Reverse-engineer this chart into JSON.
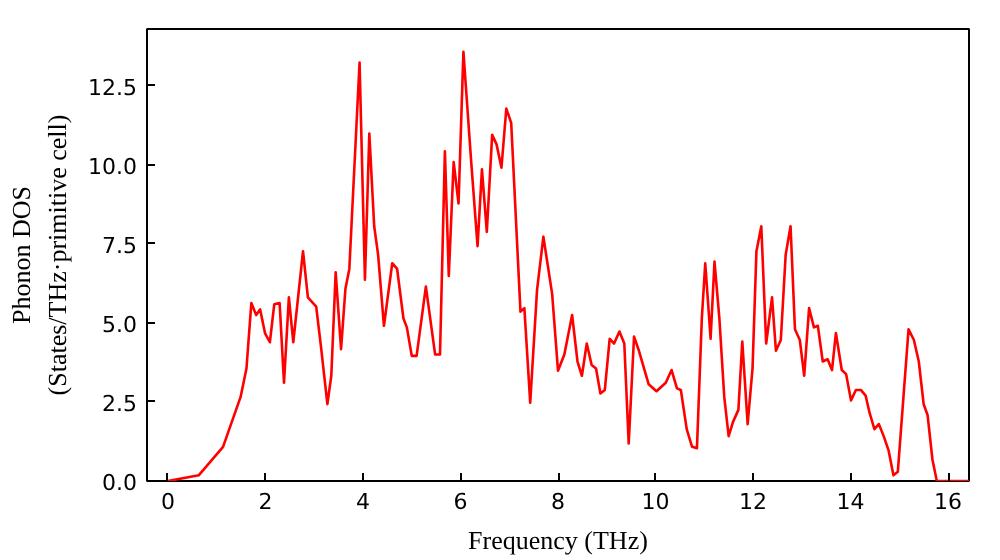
{
  "chart_data": {
    "type": "line",
    "xlabel": "Frequency (THz)",
    "ylabel": "Phonon DOS\n(States/THz·primitive cell)",
    "xlim": [
      -0.43,
      16.43
    ],
    "ylim": [
      0,
      14.3
    ],
    "xticks": [
      0,
      2,
      4,
      6,
      8,
      10,
      12,
      14,
      16
    ],
    "yticks": [
      {
        "value": 0,
        "label": "0.0"
      },
      2.5,
      {
        "value": 5,
        "label": "5.0"
      },
      {
        "value": 7.5,
        "label": "7.5"
      },
      {
        "value": 10,
        "label": "10.0"
      },
      12.5
    ],
    "grid": false,
    "marker": "none",
    "line_style": "solid",
    "series": [
      {
        "color": "#ff0000",
        "x": [
          0,
          0.63,
          1.13,
          1.49,
          1.61,
          1.71,
          1.81,
          1.89,
          1.99,
          2.09,
          2.18,
          2.29,
          2.38,
          2.48,
          2.57,
          2.77,
          2.87,
          3.04,
          3.14,
          3.27,
          3.35,
          3.44,
          3.55,
          3.64,
          3.72,
          3.93,
          4.04,
          4.13,
          4.23,
          4.31,
          4.43,
          4.6,
          4.7,
          4.83,
          4.9,
          5.0,
          5.1,
          5.29,
          5.48,
          5.58,
          5.68,
          5.76,
          5.86,
          5.96,
          6.06,
          6.22,
          6.35,
          6.44,
          6.54,
          6.65,
          6.74,
          6.84,
          6.94,
          7.04,
          7.23,
          7.31,
          7.43,
          7.57,
          7.7,
          7.88,
          8.0,
          8.13,
          8.29,
          8.4,
          8.49,
          8.59,
          8.69,
          8.78,
          8.87,
          8.96,
          9.06,
          9.15,
          9.26,
          9.36,
          9.45,
          9.56,
          9.66,
          9.86,
          10.02,
          10.21,
          10.33,
          10.44,
          10.52,
          10.64,
          10.75,
          10.85,
          10.95,
          11.02,
          11.13,
          11.21,
          11.31,
          11.41,
          11.5,
          11.59,
          11.7,
          11.78,
          11.89,
          11.99,
          12.07,
          12.17,
          12.27,
          12.39,
          12.47,
          12.57,
          12.67,
          12.77,
          12.86,
          12.96,
          13.05,
          13.15,
          13.25,
          13.33,
          13.43,
          13.53,
          13.62,
          13.7,
          13.82,
          13.91,
          14.01,
          14.11,
          14.21,
          14.31,
          14.39,
          14.49,
          14.58,
          14.68,
          14.78,
          14.88,
          14.97,
          15.19,
          15.3,
          15.4,
          15.5,
          15.58,
          15.68,
          15.77,
          16.43
        ],
        "values": [
          0,
          0.18,
          1.08,
          2.66,
          3.56,
          5.63,
          5.25,
          5.43,
          4.68,
          4.39,
          5.59,
          5.63,
          3.11,
          5.81,
          4.39,
          7.27,
          5.81,
          5.52,
          4.23,
          2.43,
          3.33,
          6.6,
          4.17,
          6.08,
          6.71,
          13.24,
          6.37,
          10.99,
          8.06,
          7.16,
          4.91,
          6.89,
          6.71,
          5.14,
          4.86,
          3.96,
          3.96,
          6.15,
          4.0,
          4.0,
          10.43,
          6.49,
          10.09,
          8.78,
          13.58,
          10.09,
          7.43,
          9.86,
          7.88,
          10.95,
          10.65,
          9.91,
          11.78,
          11.33,
          5.36,
          5.47,
          2.48,
          6.04,
          7.73,
          5.92,
          3.49,
          4.0,
          5.25,
          3.78,
          3.33,
          4.35,
          3.67,
          3.56,
          2.77,
          2.88,
          4.5,
          4.35,
          4.73,
          4.35,
          1.19,
          4.57,
          4.12,
          3.06,
          2.84,
          3.11,
          3.51,
          2.93,
          2.88,
          1.64,
          1.08,
          1.04,
          5.14,
          6.89,
          4.5,
          6.94,
          5.14,
          2.66,
          1.42,
          1.87,
          2.25,
          4.41,
          1.8,
          3.56,
          7.27,
          8.06,
          4.35,
          5.81,
          4.12,
          4.46,
          7.16,
          8.06,
          4.8,
          4.46,
          3.33,
          5.47,
          4.86,
          4.91,
          3.78,
          3.85,
          3.51,
          4.68,
          3.51,
          3.38,
          2.55,
          2.88,
          2.88,
          2.7,
          2.16,
          1.64,
          1.8,
          1.42,
          0.97,
          0.18,
          0.29,
          4.8,
          4.46,
          3.78,
          2.43,
          2.09,
          0.68,
          0,
          0
        ]
      }
    ]
  }
}
